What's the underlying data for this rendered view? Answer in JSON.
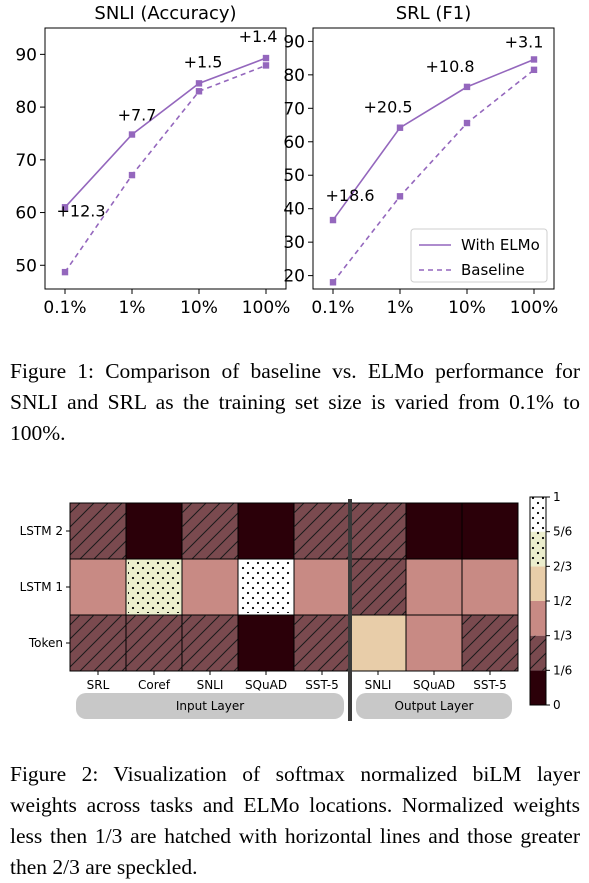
{
  "chart_data": [
    {
      "type": "line",
      "title": "SNLI (Accuracy)",
      "xlabel": "",
      "ylabel": "",
      "categories": [
        "0.1%",
        "1%",
        "10%",
        "100%"
      ],
      "yticks": [
        50,
        60,
        70,
        80,
        90
      ],
      "ylim": [
        45.5,
        95
      ],
      "series": [
        {
          "name": "With ELMo",
          "values": [
            61.0,
            74.8,
            84.5,
            89.3
          ],
          "style": "solid"
        },
        {
          "name": "Baseline",
          "values": [
            48.7,
            67.1,
            83.0,
            87.9
          ],
          "style": "dashed"
        }
      ],
      "annotations": [
        "+12.3",
        "+7.7",
        "+1.5",
        "+1.4"
      ],
      "grid": false,
      "legend": "none",
      "color": "#9467bd"
    },
    {
      "type": "line",
      "title": "SRL (F1)",
      "xlabel": "",
      "ylabel": "",
      "categories": [
        "0.1%",
        "1%",
        "10%",
        "100%"
      ],
      "yticks": [
        20,
        30,
        40,
        50,
        60,
        70,
        80,
        90
      ],
      "ylim": [
        16,
        94
      ],
      "series": [
        {
          "name": "With ELMo",
          "values": [
            36.6,
            64.2,
            76.4,
            84.6
          ],
          "style": "solid"
        },
        {
          "name": "Baseline",
          "values": [
            18.0,
            43.7,
            65.6,
            81.5
          ],
          "style": "dashed"
        }
      ],
      "annotations": [
        "+18.6",
        "+20.5",
        "+10.8",
        "+3.1"
      ],
      "grid": false,
      "legend": "lower-right",
      "color": "#9467bd"
    },
    {
      "type": "heatmap",
      "rows": [
        "LSTM 2",
        "LSTM 1",
        "Token"
      ],
      "columns": [
        "SRL",
        "Coref",
        "SNLI",
        "SQuAD",
        "SST-5",
        "SNLI",
        "SQuAD",
        "SST-5"
      ],
      "column_groups": [
        {
          "label": "Input Layer",
          "count": 5
        },
        {
          "label": "Output Layer",
          "count": 3
        }
      ],
      "values": [
        [
          0.25,
          0.05,
          0.25,
          0.05,
          0.25,
          0.25,
          0.05,
          0.05
        ],
        [
          0.42,
          0.75,
          0.42,
          0.92,
          0.42,
          0.25,
          0.42,
          0.42
        ],
        [
          0.25,
          0.25,
          0.25,
          0.05,
          0.25,
          0.58,
          0.42,
          0.25
        ]
      ],
      "colorbar": {
        "ticks": [
          "0",
          "1/6",
          "1/3",
          "1/2",
          "2/3",
          "5/6",
          "1"
        ],
        "colors": [
          "#2b0009",
          "#7a4a4f",
          "#c88a84",
          "#e8cda9",
          "#eceecd",
          "#ffffff"
        ]
      }
    }
  ],
  "captions": {
    "fig1": "Figure 1: Comparison of baseline vs. ELMo performance for SNLI and SRL as the training set size is varied from 0.1% to 100%.",
    "fig2": "Figure 2: Visualization of softmax normalized biLM layer weights across tasks and ELMo locations. Normalized weights less then 1/3 are hatched with horizontal lines and those greater then 2/3 are speckled."
  }
}
